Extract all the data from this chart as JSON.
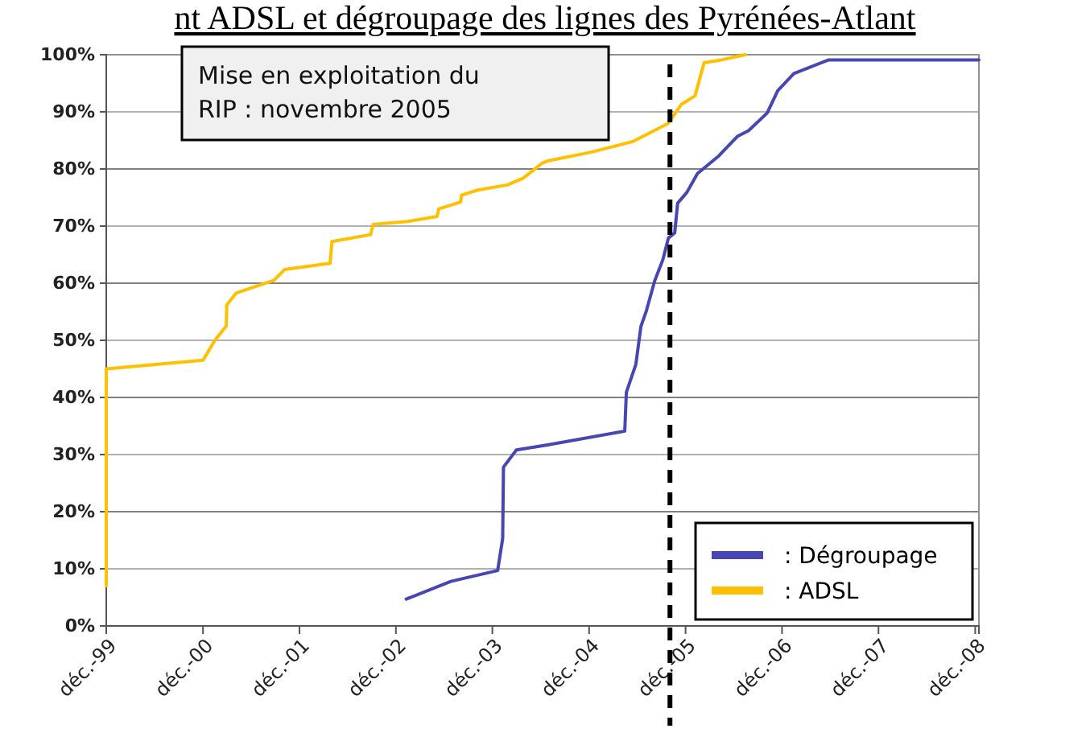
{
  "chart_data": {
    "type": "line",
    "title": "nt ADSL et dégroupage des lignes des Pyrénées-Atlant",
    "xlim": [
      "1999-12-01",
      "2008-12-15"
    ],
    "xticks": [
      {
        "value": "1999-12",
        "label": "déc.-99"
      },
      {
        "value": "2000-12",
        "label": "déc.-00"
      },
      {
        "value": "2001-12",
        "label": "déc.-01"
      },
      {
        "value": "2002-12",
        "label": "déc.-02"
      },
      {
        "value": "2003-12",
        "label": "déc.-03"
      },
      {
        "value": "2004-12",
        "label": "déc.-04"
      },
      {
        "value": "2005-12",
        "label": "déc.-05"
      },
      {
        "value": "2006-12",
        "label": "déc.-06"
      },
      {
        "value": "2007-12",
        "label": "déc.-07"
      },
      {
        "value": "2008-12",
        "label": "déc.-08"
      }
    ],
    "ylim": [
      0,
      100
    ],
    "yticks": [
      {
        "value": 0,
        "label": "0%"
      },
      {
        "value": 10,
        "label": "10%"
      },
      {
        "value": 20,
        "label": "20%"
      },
      {
        "value": 30,
        "label": "30%"
      },
      {
        "value": 40,
        "label": "40%"
      },
      {
        "value": 50,
        "label": "50%"
      },
      {
        "value": 60,
        "label": "60%"
      },
      {
        "value": 70,
        "label": "70%"
      },
      {
        "value": 80,
        "label": "80%"
      },
      {
        "value": 90,
        "label": "90%"
      },
      {
        "value": 100,
        "label": "100%"
      }
    ],
    "grid": "y",
    "legend": "bottom right",
    "marker": "none",
    "line_style": "solid",
    "series": [
      {
        "name": ": Dégroupage",
        "color": "#4646b4",
        "x": [
          "2003-01-09",
          "2003-06-27",
          "2003-12-21",
          "2004-01-09",
          "2004-01-12",
          "2004-03-01",
          "2004-06-27",
          "2005-04-15",
          "2005-04-21",
          "2005-05-27",
          "2005-06-15",
          "2005-07-06",
          "2005-08-06",
          "2005-09-06",
          "2005-09-27",
          "2005-10-21",
          "2005-11-01",
          "2005-12-06",
          "2006-01-15",
          "2006-04-06",
          "2006-06-15",
          "2006-07-27",
          "2006-10-06",
          "2006-11-15",
          "2007-01-15",
          "2007-05-27",
          "2008-12-15"
        ],
        "values": [
          4.7,
          7.8,
          9.7,
          15.3,
          27.8,
          30.8,
          31.7,
          34.1,
          40.9,
          45.8,
          52.4,
          55.2,
          60.4,
          64.1,
          67.9,
          68.8,
          74,
          75.9,
          79.2,
          82.3,
          85.7,
          86.7,
          89.8,
          93.7,
          96.7,
          99.1,
          99.1
        ]
      },
      {
        "name": ": ADSL",
        "color": "#ffc000",
        "x": [
          "1999-12-01",
          "1999-12-01",
          "2000-12-01",
          "2001-01-15",
          "2001-02-27",
          "2001-03-01",
          "2001-04-06",
          "2001-08-27",
          "2001-10-06",
          "2002-03-27",
          "2002-04-03",
          "2002-08-27",
          "2002-09-06",
          "2003-01-15",
          "2003-05-06",
          "2003-05-12",
          "2003-08-03",
          "2003-08-06",
          "2003-10-06",
          "2004-01-27",
          "2004-03-27",
          "2004-06-06",
          "2004-06-27",
          "2004-12-06",
          "2005-05-15",
          "2005-09-27",
          "2005-11-15",
          "2006-01-06",
          "2006-02-09",
          "2006-04-06",
          "2006-07-15"
        ],
        "values": [
          7,
          45,
          46.5,
          50,
          52.5,
          56.2,
          58.3,
          60.5,
          62.4,
          63.5,
          67.3,
          68.5,
          70.3,
          70.8,
          71.7,
          73,
          74.2,
          75.4,
          76.3,
          77.2,
          78.4,
          81,
          81.4,
          82.9,
          84.8,
          88,
          91.3,
          92.8,
          98.6,
          99,
          100
        ]
      }
    ],
    "annotations": [
      "Mise en exploitation du RIP : novembre 2005"
    ],
    "ref_lines": [
      {
        "axis": "x",
        "value": "2005-10-03",
        "color": "#000000",
        "line_style": "dashed"
      }
    ]
  }
}
